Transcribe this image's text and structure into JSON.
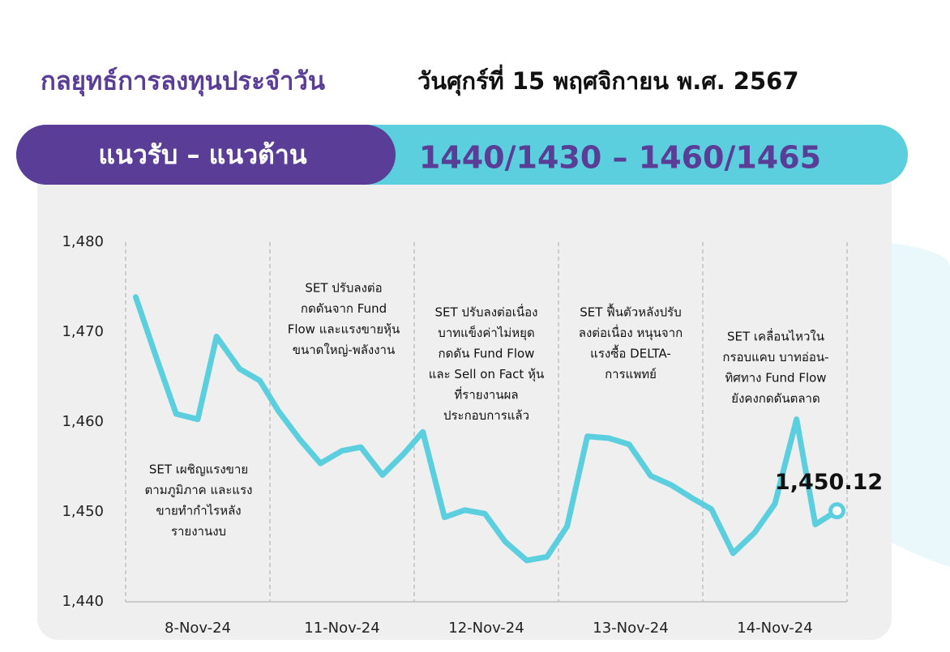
{
  "header": {
    "title": "กลยุทธ์การลงทุนประจำวัน",
    "date": "วันศุกร์ที่ 15 พฤศจิกายน พ.ศ. 2567"
  },
  "banner": {
    "label": "แนวรับ – แนวต้าน",
    "levels": "1440/1430 – 1460/1465"
  },
  "chart_data": {
    "type": "line",
    "x": [
      0.07,
      0.21,
      0.35,
      0.5,
      0.63,
      0.79,
      0.93,
      1.06,
      1.21,
      1.35,
      1.5,
      1.63,
      1.78,
      1.93,
      2.06,
      2.21,
      2.35,
      2.49,
      2.63,
      2.78,
      2.92,
      3.06,
      3.2,
      3.35,
      3.49,
      3.64,
      3.78,
      3.93,
      4.06,
      4.21,
      4.36,
      4.5,
      4.65,
      4.78,
      4.93
    ],
    "series": [
      {
        "color": "#5ccfdf",
        "values": [
          1473.9,
          1467.3,
          1460.9,
          1460.3,
          1469.5,
          1465.9,
          1464.6,
          1461.2,
          1458.0,
          1455.4,
          1456.8,
          1457.2,
          1454.1,
          1456.5,
          1458.9,
          1449.4,
          1450.2,
          1449.8,
          1446.7,
          1444.6,
          1445.0,
          1448.4,
          1458.4,
          1458.2,
          1457.5,
          1454.0,
          1453.0,
          1451.5,
          1450.3,
          1445.4,
          1447.7,
          1450.9,
          1460.3,
          1448.6,
          1450.12
        ],
        "value_labels": [
          null,
          null,
          null,
          null,
          null,
          null,
          null,
          null,
          null,
          null,
          null,
          null,
          null,
          null,
          null,
          null,
          null,
          null,
          null,
          null,
          null,
          null,
          null,
          null,
          null,
          null,
          null,
          null,
          null,
          null,
          null,
          null,
          null,
          null,
          "1,450.12"
        ]
      }
    ],
    "xlim": [
      0,
      5
    ],
    "xticks": [
      {
        "value": 0.5,
        "label": "8-Nov-24"
      },
      {
        "value": 1.5,
        "label": "11-Nov-24"
      },
      {
        "value": 2.5,
        "label": "12-Nov-24"
      },
      {
        "value": 3.5,
        "label": "13-Nov-24"
      },
      {
        "value": 4.5,
        "label": "14-Nov-24"
      }
    ],
    "ylim": [
      1440,
      1480
    ],
    "yticks": [
      {
        "value": 1440,
        "label": "1,440"
      },
      {
        "value": 1450,
        "label": "1,450"
      },
      {
        "value": 1460,
        "label": "1,460"
      },
      {
        "value": 1470,
        "label": "1,470"
      },
      {
        "value": 1480,
        "label": "1,480"
      }
    ],
    "annotations": [
      [
        "SET เผชิญแรงขาย",
        "ตามภูมิภาค และแรง",
        "ขายทำกำไรหลัง",
        "รายงานงบ"
      ],
      [
        "SET ปรับลงต่อ",
        "กดดันจาก Fund",
        "Flow และแรงขายหุ้น",
        "ขนาดใหญ่-พลังงาน"
      ],
      [
        "SET ปรับลงต่อเนื่อง",
        "บาทแข็งค่าไม่หยุด",
        "กดดัน Fund Flow",
        "และ Sell on Fact หุ้น",
        "ที่รายงานผล",
        "ประกอบการแล้ว"
      ],
      [
        "SET ฟื้นตัวหลังปรับ",
        "ลงต่อเนื่อง หนุนจาก",
        "แรงซื้อ DELTA-",
        "การแพทย์"
      ],
      [
        "SET เคลื่อนไหวใน",
        "กรอบแคบ บาทอ่อน-",
        "ทิศทาง Fund Flow",
        "ยังคงกดดันตลาด"
      ]
    ]
  }
}
